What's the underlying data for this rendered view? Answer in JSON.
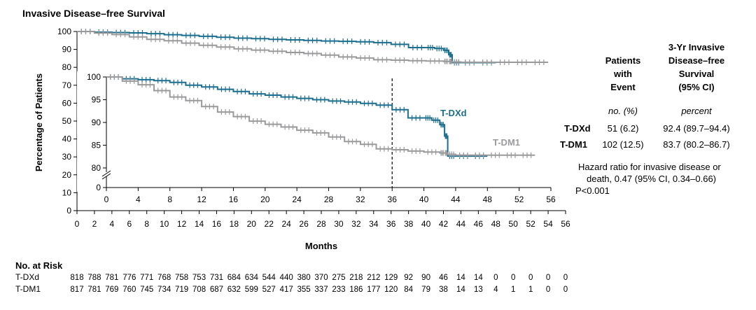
{
  "chart_data": {
    "type": "line",
    "title": "Invasive Disease–free Survival",
    "ylabel": "Percentage of Patients",
    "xlabel": "Months",
    "outer_axis": {
      "xlim": [
        0,
        56
      ],
      "ylim": [
        0,
        100
      ],
      "x_ticks": [
        0,
        2,
        4,
        6,
        8,
        10,
        12,
        14,
        16,
        18,
        20,
        22,
        24,
        26,
        28,
        30,
        32,
        34,
        36,
        38,
        40,
        42,
        44,
        46,
        48,
        50,
        52,
        54,
        56
      ],
      "y_ticks": [
        0,
        10,
        20,
        30,
        40,
        50,
        60,
        70,
        80,
        90,
        100
      ]
    },
    "inset_axis": {
      "xlim": [
        0,
        56
      ],
      "ylim": [
        80,
        100
      ],
      "x_ticks": [
        0,
        4,
        8,
        12,
        16,
        20,
        24,
        28,
        32,
        36,
        40,
        44,
        48,
        52,
        56
      ],
      "y_ticks": [
        80,
        85,
        90,
        95,
        100
      ],
      "reference_line_x": 36
    },
    "series": [
      {
        "name": "T-DXd",
        "label": "T-DXd",
        "color": "#1b6e8f",
        "x": [
          0,
          2,
          4,
          6,
          8,
          10,
          12,
          14,
          16,
          18,
          20,
          22,
          24,
          26,
          28,
          30,
          32,
          34,
          36,
          38,
          40,
          41,
          42,
          42.6,
          43,
          44,
          46,
          48
        ],
        "y": [
          100,
          99.6,
          99.4,
          99.2,
          98.8,
          98.2,
          97.8,
          97.3,
          96.8,
          96.3,
          96.0,
          95.6,
          95.3,
          95.0,
          94.7,
          94.5,
          94.2,
          93.8,
          92.8,
          91.0,
          91.0,
          90.5,
          89.5,
          87.0,
          82.6,
          82.6,
          82.6,
          82.6
        ]
      },
      {
        "name": "T-DM1",
        "label": "T-DM1",
        "color": "#9a9a9d",
        "x": [
          0,
          2,
          4,
          6,
          8,
          10,
          12,
          14,
          16,
          18,
          20,
          22,
          24,
          26,
          28,
          30,
          32,
          34,
          36,
          38,
          40,
          42,
          42.6,
          43,
          44,
          46,
          48,
          50,
          52,
          54
        ],
        "y": [
          100,
          99.1,
          98.3,
          97.0,
          95.6,
          94.8,
          93.5,
          92.3,
          91.3,
          90.3,
          89.6,
          89.0,
          88.3,
          87.7,
          86.8,
          85.8,
          85.2,
          84.2,
          84.0,
          83.7,
          83.5,
          83.3,
          83.3,
          83.0,
          82.8,
          82.8,
          82.8,
          82.8,
          82.8,
          82.8
        ]
      }
    ]
  },
  "table": {
    "col1_header": [
      "Patients",
      "with",
      "Event"
    ],
    "col2_header": [
      "3-Yr Invasive",
      "Disease–free",
      "Survival",
      "(95% CI)"
    ],
    "col1_unit": "no. (%)",
    "col2_unit": "percent",
    "rows": [
      {
        "label": "T-DXd",
        "events": "51 (6.2)",
        "survival": "92.4 (89.7–94.4)"
      },
      {
        "label": "T-DM1",
        "events": "102 (12.5)",
        "survival": "83.7 (80.2–86.7)"
      }
    ],
    "hazard_line1": "Hazard ratio for invasive disease or",
    "hazard_line2": "death, 0.47 (95% CI, 0.34–0.66)",
    "p_value": "P<0.001"
  },
  "at_risk": {
    "title": "No. at Risk",
    "rows": [
      {
        "label": "T-DXd",
        "values": [
          "818",
          "788",
          "781",
          "776",
          "771",
          "768",
          "758",
          "753",
          "731",
          "684",
          "634",
          "544",
          "440",
          "380",
          "370",
          "275",
          "218",
          "212",
          "129",
          "92",
          "90",
          "46",
          "14",
          "14",
          "0",
          "0",
          "0",
          "0",
          "0"
        ]
      },
      {
        "label": "T-DM1",
        "values": [
          "817",
          "781",
          "769",
          "760",
          "745",
          "734",
          "719",
          "708",
          "687",
          "632",
          "599",
          "527",
          "417",
          "355",
          "337",
          "233",
          "186",
          "177",
          "120",
          "84",
          "79",
          "38",
          "14",
          "13",
          "4",
          "1",
          "1",
          "0",
          "0"
        ]
      }
    ]
  }
}
